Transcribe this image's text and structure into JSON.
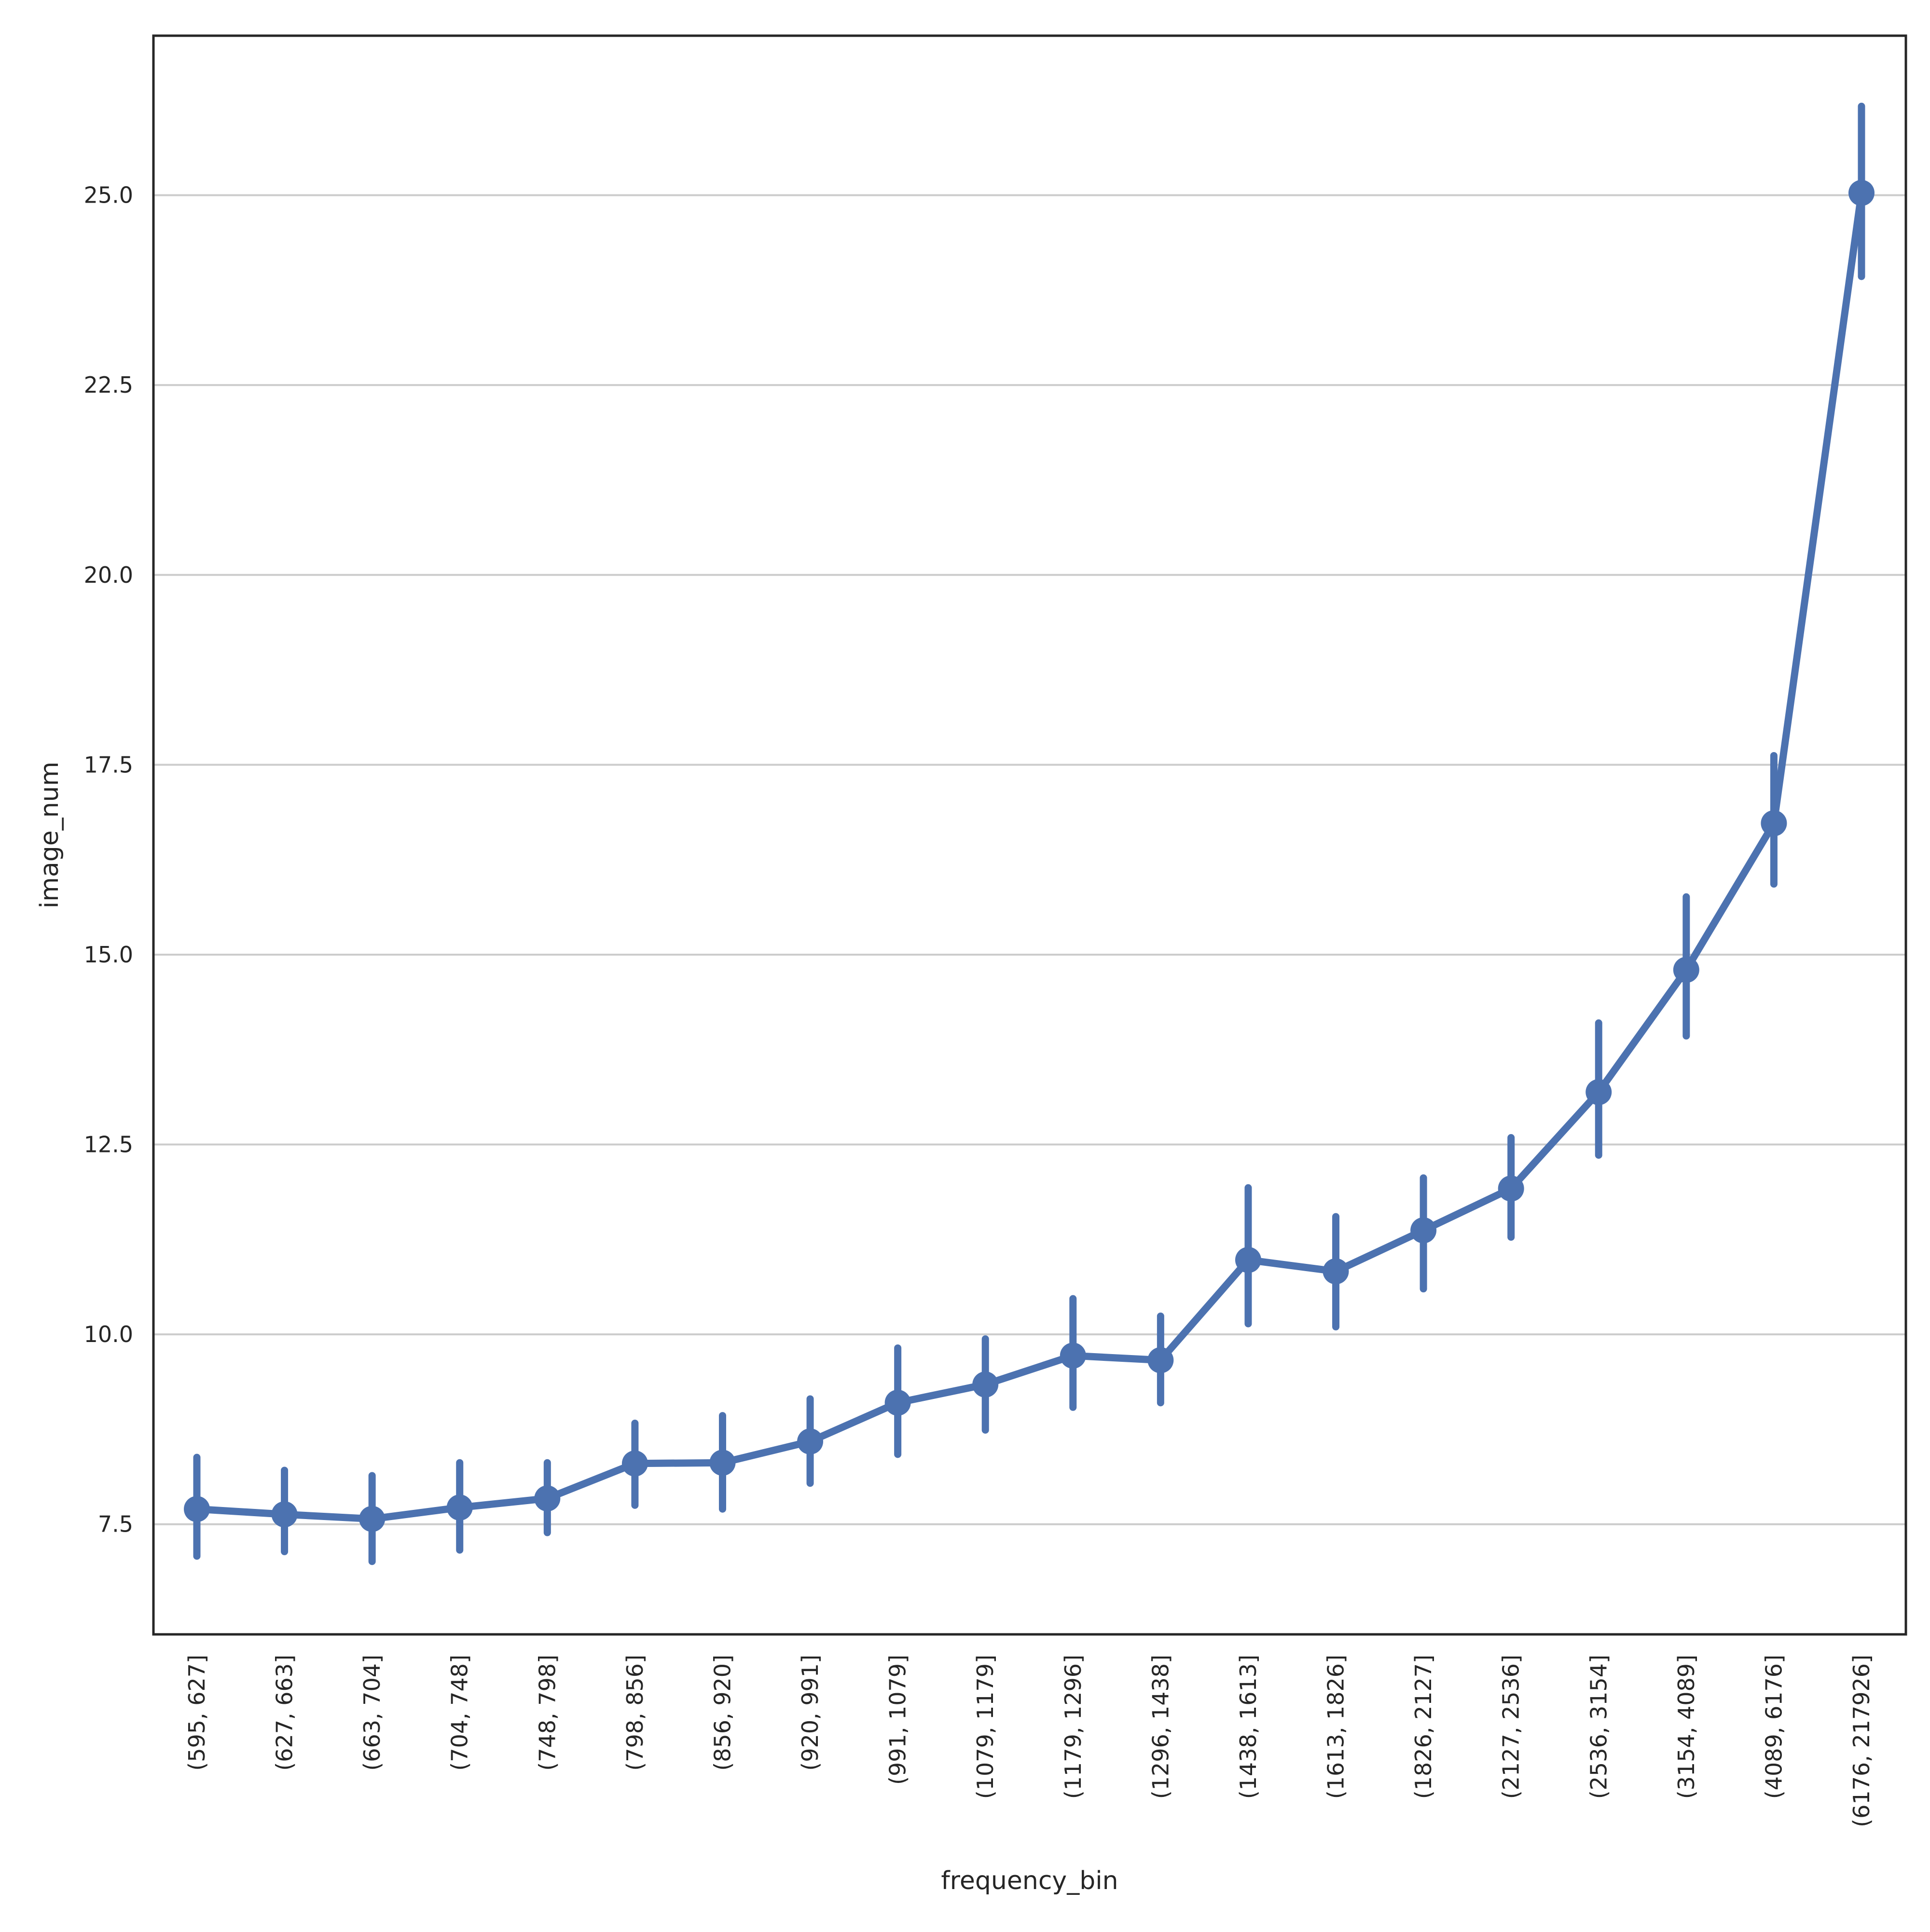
{
  "chart_data": {
    "type": "line",
    "title": "",
    "xlabel": "frequency_bin",
    "ylabel": "image_num",
    "ylim": [
      6.05,
      27.1
    ],
    "yticks": [
      "7.5",
      "10.0",
      "12.5",
      "15.0",
      "17.5",
      "20.0",
      "22.5",
      "25.0"
    ],
    "grid": "horizontal",
    "legend": "none",
    "color": "#4c72b0",
    "categories": [
      "(595, 627]",
      "(627, 663]",
      "(663, 704]",
      "(704, 748]",
      "(748, 798]",
      "(798, 856]",
      "(856, 920]",
      "(920, 991]",
      "(991, 1079]",
      "(1079, 1179]",
      "(1179, 1296]",
      "(1296, 1438]",
      "(1438, 1613]",
      "(1613, 1826]",
      "(1826, 2127]",
      "(2127, 2536]",
      "(2536, 3154]",
      "(3154, 4089]",
      "(4089, 6176]",
      "(6176, 217926]"
    ],
    "series": [
      {
        "values": [
          7.7,
          7.63,
          7.57,
          7.72,
          7.84,
          8.3,
          8.31,
          8.59,
          9.1,
          9.34,
          9.72,
          9.66,
          10.98,
          10.83,
          11.37,
          11.92,
          13.19,
          14.8,
          16.73,
          25.03
        ],
        "ci_low": [
          7.08,
          7.14,
          7.01,
          7.16,
          7.39,
          7.75,
          7.7,
          8.04,
          8.42,
          8.74,
          9.04,
          9.1,
          10.14,
          10.1,
          10.6,
          11.28,
          12.36,
          13.93,
          15.93,
          23.93
        ],
        "ci_high": [
          8.38,
          8.21,
          8.14,
          8.31,
          8.31,
          8.83,
          8.93,
          9.15,
          9.82,
          9.94,
          10.47,
          10.24,
          11.93,
          11.55,
          12.06,
          12.59,
          14.1,
          15.76,
          17.62,
          26.17
        ]
      }
    ]
  }
}
